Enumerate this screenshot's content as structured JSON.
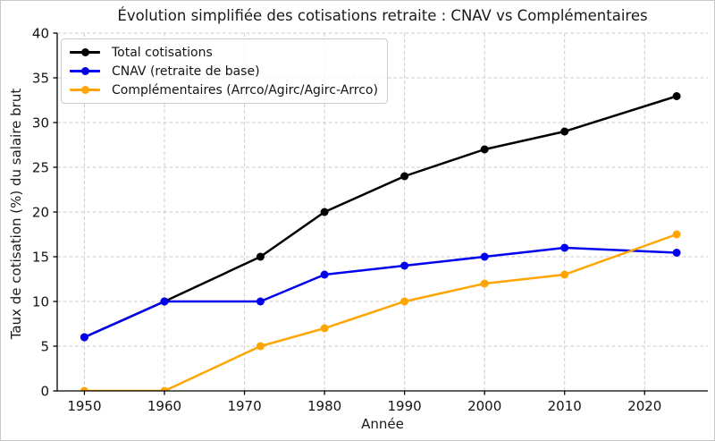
{
  "chart_data": {
    "type": "line",
    "title": "Évolution simplifiée des cotisations retraite : CNAV vs Complémentaires",
    "xlabel": "Année",
    "ylabel": "Taux de cotisation (%) du salaire brut",
    "x": [
      1950,
      1960,
      1972,
      1980,
      1990,
      2000,
      2010,
      2024
    ],
    "series": [
      {
        "name": "Total cotisations",
        "color": "#000000",
        "values": [
          6,
          10,
          15,
          20,
          24,
          27,
          29,
          32.95
        ]
      },
      {
        "name": "CNAV (retraite de base)",
        "color": "#0000ee",
        "values": [
          6,
          10,
          10,
          13,
          14,
          15,
          16,
          15.45
        ]
      },
      {
        "name": "Complémentaires (Arrco/Agirc/Agirc-Arrco)",
        "color": "#ffa500",
        "values": [
          0,
          0,
          5,
          7,
          10,
          12,
          13,
          17.5
        ]
      }
    ],
    "xticks": [
      1950,
      1960,
      1970,
      1980,
      1990,
      2000,
      2010,
      2020
    ],
    "yticks": [
      0,
      5,
      10,
      15,
      20,
      25,
      30,
      35,
      40
    ],
    "xlim": [
      1946.6,
      2027.9
    ],
    "ylim": [
      0,
      40
    ],
    "grid": true,
    "grid_style": "dashed",
    "legend_position": "upper-left",
    "colors": {
      "grid": "#cccccc",
      "axis": "#000000",
      "tick_text": "#141414"
    }
  }
}
